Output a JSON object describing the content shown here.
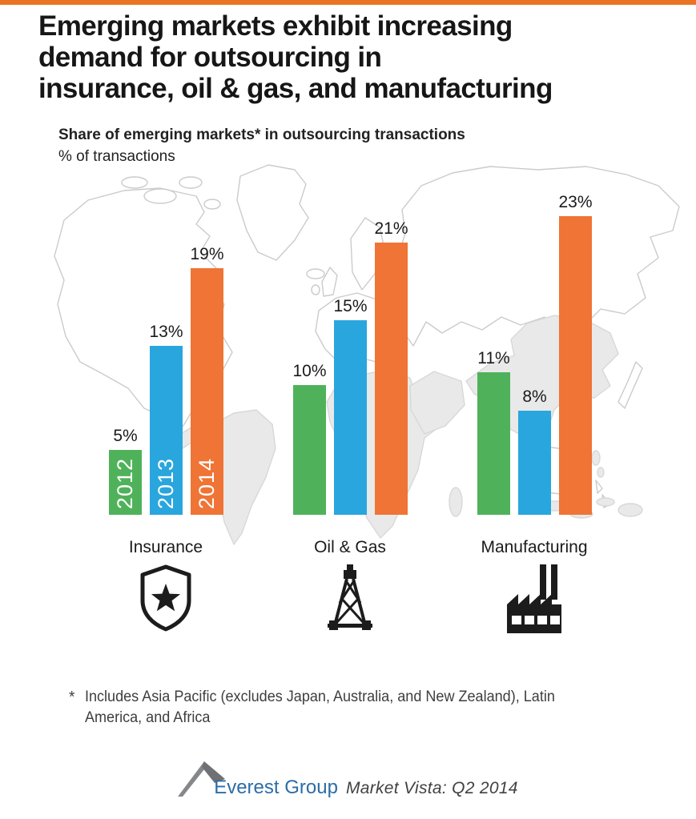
{
  "accent_bar": {
    "color": "#E97424"
  },
  "header": {
    "title_lines": [
      "Emerging markets exhibit increasing",
      "demand for outsourcing in",
      "insurance, oil & gas, and manufacturing"
    ]
  },
  "subtitle": {
    "bold": "Share of emerging markets* in outsourcing transactions",
    "unit_line": "% of transactions"
  },
  "chart_data": {
    "type": "bar",
    "title": "Share of emerging markets* in outsourcing transactions",
    "ylabel": "% of transactions",
    "categories": [
      "Insurance",
      "Oil & Gas",
      "Manufacturing"
    ],
    "series": [
      {
        "name": "2012",
        "color": "#4FB25A",
        "values": [
          5,
          10,
          11
        ]
      },
      {
        "name": "2013",
        "color": "#29A6DD",
        "values": [
          13,
          15,
          8
        ]
      },
      {
        "name": "2014",
        "color": "#EF7435",
        "values": [
          19,
          21,
          23
        ]
      }
    ],
    "value_suffix": "%",
    "ylim": [
      0,
      25
    ],
    "grid": false,
    "legend_position": "year labels inside first group bars",
    "background": "light gray world map, emerging regions shaded"
  },
  "category_icons": [
    {
      "category": "Insurance",
      "icon": "shield-star-icon"
    },
    {
      "category": "Oil & Gas",
      "icon": "oil-derrick-icon"
    },
    {
      "category": "Manufacturing",
      "icon": "factory-icon"
    }
  ],
  "footnote": {
    "marker": "*",
    "lines": [
      "Includes Asia Pacific (excludes Japan, Australia, and New Zealand), Latin",
      "America, and Africa"
    ]
  },
  "footer": {
    "brand": "Everest Group",
    "product": "Market Vista: Q2 2014",
    "brand_color": "#2B6DA8",
    "mark_color": "#7A7C7E"
  },
  "map_colors": {
    "land_fill": "#E9E9E9",
    "outline": "#CBCBCB"
  }
}
